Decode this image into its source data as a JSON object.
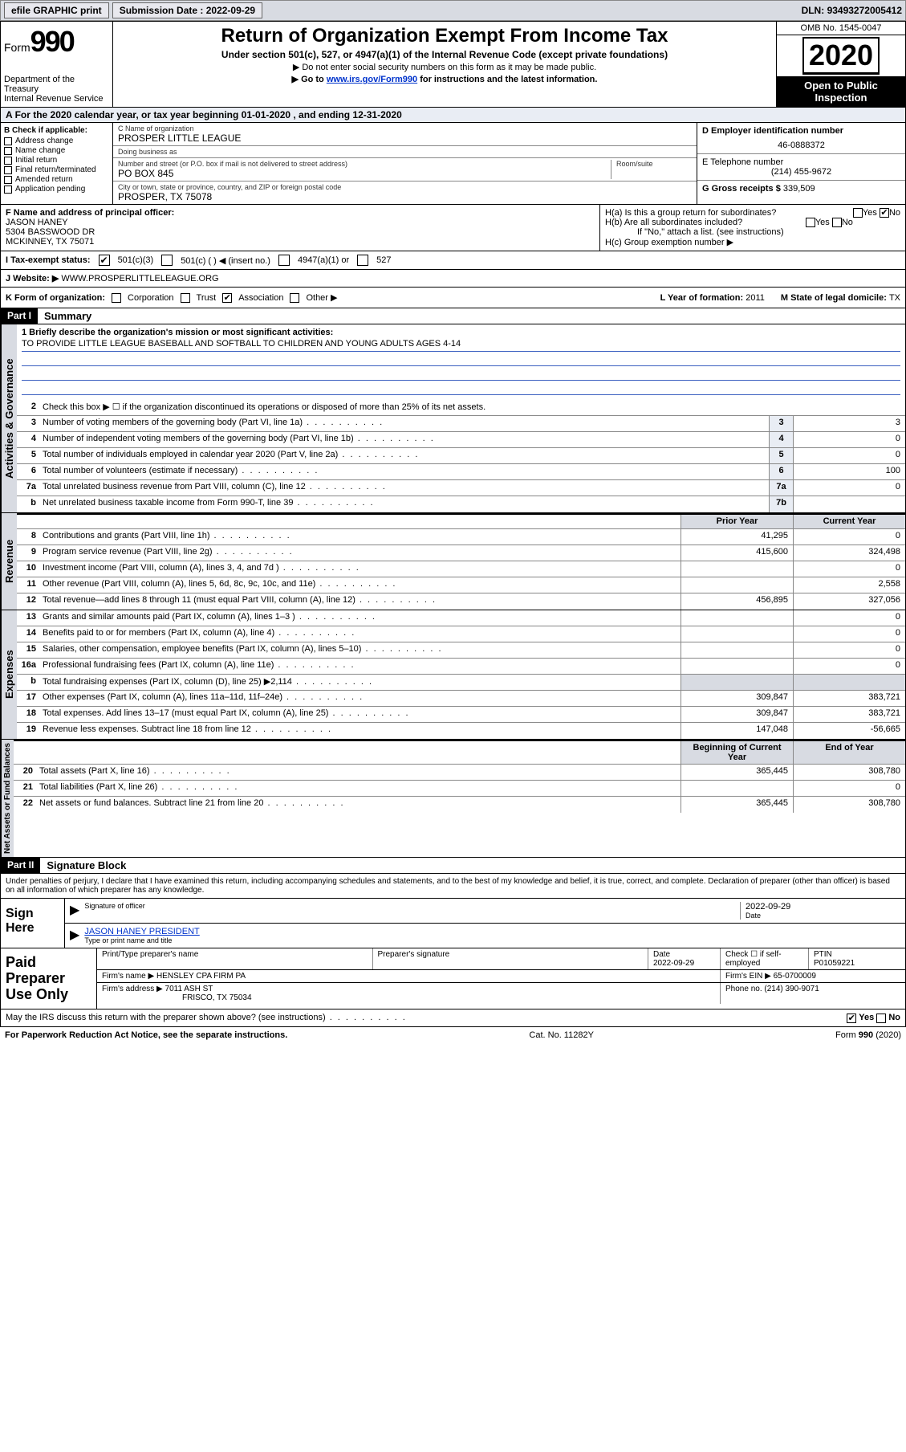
{
  "topbar": {
    "efile": "efile GRAPHIC print",
    "submission_label": "Submission Date : ",
    "submission_date": "2022-09-29",
    "dln_label": "DLN: ",
    "dln": "93493272005412"
  },
  "header": {
    "form_label": "Form",
    "form_num": "990",
    "dept1": "Department of the Treasury",
    "dept2": "Internal Revenue Service",
    "title": "Return of Organization Exempt From Income Tax",
    "sub": "Under section 501(c), 527, or 4947(a)(1) of the Internal Revenue Code (except private foundations)",
    "line1": "▶ Do not enter social security numbers on this form as it may be made public.",
    "line2_pre": "▶ Go to ",
    "line2_link": "www.irs.gov/Form990",
    "line2_post": " for instructions and the latest information.",
    "omb": "OMB No. 1545-0047",
    "year": "2020",
    "open1": "Open to Public",
    "open2": "Inspection"
  },
  "taxyear": {
    "text": "For the 2020 calendar year, or tax year beginning 01-01-2020    , and ending 12-31-2020"
  },
  "box_b": {
    "hdr": "B Check if applicable:",
    "items": [
      "Address change",
      "Name change",
      "Initial return",
      "Final return/terminated",
      "Amended return",
      "Application pending"
    ]
  },
  "box_c": {
    "name_lbl": "C Name of organization",
    "name": "PROSPER LITTLE LEAGUE",
    "dba_lbl": "Doing business as",
    "dba": "",
    "street_lbl": "Number and street (or P.O. box if mail is not delivered to street address)",
    "room_lbl": "Room/suite",
    "street": "PO BOX 845",
    "city_lbl": "City or town, state or province, country, and ZIP or foreign postal code",
    "city": "PROSPER, TX  75078"
  },
  "box_d": {
    "ein_lbl": "D Employer identification number",
    "ein": "46-0888372",
    "phone_lbl": "E Telephone number",
    "phone": "(214) 455-9672",
    "gross_lbl": "G Gross receipts $ ",
    "gross": "339,509"
  },
  "box_f": {
    "lbl": "F  Name and address of principal officer:",
    "name": "JASON HANEY",
    "addr1": "5304 BASSWOOD DR",
    "addr2": "MCKINNEY, TX  75071"
  },
  "box_h": {
    "a_lbl": "H(a)  Is this a group return for subordinates?",
    "b_lbl": "H(b)  Are all subordinates included?",
    "b_note": "If \"No,\" attach a list. (see instructions)",
    "c_lbl": "H(c)  Group exemption number ▶"
  },
  "status": {
    "lbl": "I   Tax-exempt status:",
    "opts": [
      "501(c)(3)",
      "501(c) (  ) ◀ (insert no.)",
      "4947(a)(1) or",
      "527"
    ]
  },
  "website": {
    "lbl": "J   Website: ▶  ",
    "val": "WWW.PROSPERLITTLELEAGUE.ORG"
  },
  "korg": {
    "lbl": "K Form of organization:",
    "opts": [
      "Corporation",
      "Trust",
      "Association",
      "Other ▶"
    ],
    "year_lbl": "L Year of formation: ",
    "year": "2011",
    "state_lbl": "M State of legal domicile: ",
    "state": "TX"
  },
  "part1": {
    "tab": "Part I",
    "title": "Summary",
    "mission_lbl": "1  Briefly describe the organization's mission or most significant activities:",
    "mission": "TO PROVIDE LITTLE LEAGUE BASEBALL AND SOFTBALL TO CHILDREN AND YOUNG ADULTS AGES 4-14",
    "line2": "Check this box ▶ ☐  if the organization discontinued its operations or disposed of more than 25% of its net assets.",
    "sidebar_gov": "Activities & Governance",
    "sidebar_rev": "Revenue",
    "sidebar_exp": "Expenses",
    "sidebar_net": "Net Assets or Fund Balances",
    "hdr_prior": "Prior Year",
    "hdr_curr": "Current Year",
    "hdr_begin": "Beginning of Current Year",
    "hdr_end": "End of Year",
    "gov_lines": [
      {
        "n": "3",
        "t": "Number of voting members of the governing body (Part VI, line 1a)",
        "b": "3",
        "v": "3"
      },
      {
        "n": "4",
        "t": "Number of independent voting members of the governing body (Part VI, line 1b)",
        "b": "4",
        "v": "0"
      },
      {
        "n": "5",
        "t": "Total number of individuals employed in calendar year 2020 (Part V, line 2a)",
        "b": "5",
        "v": "0"
      },
      {
        "n": "6",
        "t": "Total number of volunteers (estimate if necessary)",
        "b": "6",
        "v": "100"
      },
      {
        "n": "7a",
        "t": "Total unrelated business revenue from Part VIII, column (C), line 12",
        "b": "7a",
        "v": "0"
      },
      {
        "n": "b",
        "t": "Net unrelated business taxable income from Form 990-T, line 39",
        "b": "7b",
        "v": ""
      }
    ],
    "rev_lines": [
      {
        "n": "8",
        "t": "Contributions and grants (Part VIII, line 1h)",
        "p": "41,295",
        "c": "0"
      },
      {
        "n": "9",
        "t": "Program service revenue (Part VIII, line 2g)",
        "p": "415,600",
        "c": "324,498"
      },
      {
        "n": "10",
        "t": "Investment income (Part VIII, column (A), lines 3, 4, and 7d )",
        "p": "",
        "c": "0"
      },
      {
        "n": "11",
        "t": "Other revenue (Part VIII, column (A), lines 5, 6d, 8c, 9c, 10c, and 11e)",
        "p": "",
        "c": "2,558"
      },
      {
        "n": "12",
        "t": "Total revenue—add lines 8 through 11 (must equal Part VIII, column (A), line 12)",
        "p": "456,895",
        "c": "327,056"
      }
    ],
    "exp_lines": [
      {
        "n": "13",
        "t": "Grants and similar amounts paid (Part IX, column (A), lines 1–3 )",
        "p": "",
        "c": "0"
      },
      {
        "n": "14",
        "t": "Benefits paid to or for members (Part IX, column (A), line 4)",
        "p": "",
        "c": "0"
      },
      {
        "n": "15",
        "t": "Salaries, other compensation, employee benefits (Part IX, column (A), lines 5–10)",
        "p": "",
        "c": "0"
      },
      {
        "n": "16a",
        "t": "Professional fundraising fees (Part IX, column (A), line 11e)",
        "p": "",
        "c": "0"
      },
      {
        "n": "b",
        "t": "Total fundraising expenses (Part IX, column (D), line 25) ▶2,114",
        "p": "",
        "c": "",
        "gray": true
      },
      {
        "n": "17",
        "t": "Other expenses (Part IX, column (A), lines 11a–11d, 11f–24e)",
        "p": "309,847",
        "c": "383,721"
      },
      {
        "n": "18",
        "t": "Total expenses. Add lines 13–17 (must equal Part IX, column (A), line 25)",
        "p": "309,847",
        "c": "383,721"
      },
      {
        "n": "19",
        "t": "Revenue less expenses. Subtract line 18 from line 12",
        "p": "147,048",
        "c": "-56,665"
      }
    ],
    "net_lines": [
      {
        "n": "20",
        "t": "Total assets (Part X, line 16)",
        "p": "365,445",
        "c": "308,780"
      },
      {
        "n": "21",
        "t": "Total liabilities (Part X, line 26)",
        "p": "",
        "c": "0"
      },
      {
        "n": "22",
        "t": "Net assets or fund balances. Subtract line 21 from line 20",
        "p": "365,445",
        "c": "308,780"
      }
    ]
  },
  "part2": {
    "tab": "Part II",
    "title": "Signature Block",
    "decl": "Under penalties of perjury, I declare that I have examined this return, including accompanying schedules and statements, and to the best of my knowledge and belief, it is true, correct, and complete. Declaration of preparer (other than officer) is based on all information of which preparer has any knowledge.",
    "sign_here": "Sign Here",
    "sig_officer_lbl": "Signature of officer",
    "sig_date": "2022-09-29",
    "sig_date_lbl": "Date",
    "officer_name": "JASON HANEY PRESIDENT",
    "officer_name_lbl": "Type or print name and title",
    "paid_prep": "Paid Preparer Use Only",
    "prep_name_lbl": "Print/Type preparer's name",
    "prep_sig_lbl": "Preparer's signature",
    "prep_date_lbl": "Date",
    "prep_date": "2022-09-29",
    "self_emp_lbl": "Check ☐ if self-employed",
    "ptin_lbl": "PTIN",
    "ptin": "P01059221",
    "firm_name_lbl": "Firm's name      ▶ ",
    "firm_name": "HENSLEY CPA FIRM PA",
    "firm_ein_lbl": "Firm's EIN ▶ ",
    "firm_ein": "65-0700009",
    "firm_addr_lbl": "Firm's address ▶ ",
    "firm_addr1": "7011 ASH ST",
    "firm_addr2": "FRISCO, TX  75034",
    "firm_phone_lbl": "Phone no. ",
    "firm_phone": "(214) 390-9071",
    "discuss": "May the IRS discuss this return with the preparer shown above? (see instructions)",
    "yes": "Yes",
    "no": "No"
  },
  "footer": {
    "left": "For Paperwork Reduction Act Notice, see the separate instructions.",
    "mid": "Cat. No. 11282Y",
    "right": "Form 990 (2020)"
  }
}
